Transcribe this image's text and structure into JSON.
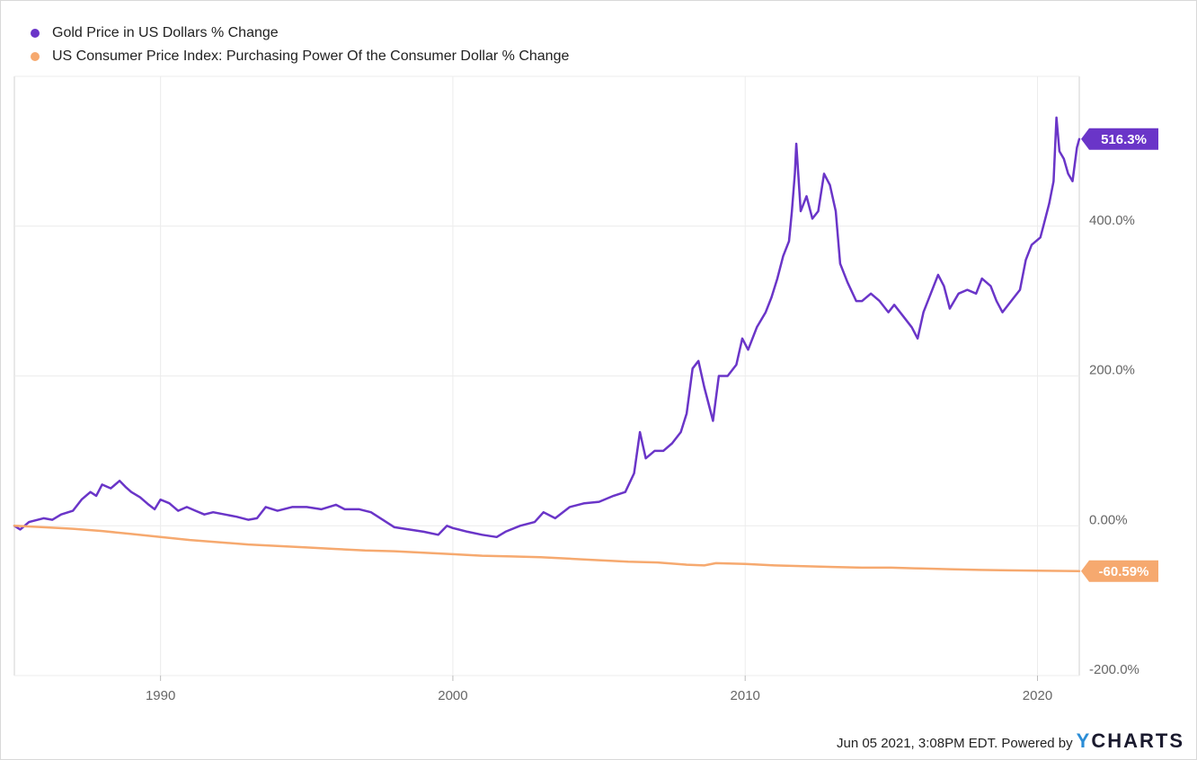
{
  "chart_data": {
    "type": "line",
    "x_range": [
      1985.0,
      2021.43
    ],
    "ylim": [
      -200,
      600
    ],
    "y_ticks": [
      {
        "value": 400,
        "label": "400.0%"
      },
      {
        "value": 200,
        "label": "200.0%"
      },
      {
        "value": 0,
        "label": "0.00%"
      },
      {
        "value": -200,
        "label": "-200.0%"
      }
    ],
    "x_ticks": [
      {
        "value": 1990,
        "label": "1990"
      },
      {
        "value": 2000,
        "label": "2000"
      },
      {
        "value": 2010,
        "label": "2010"
      },
      {
        "value": 2020,
        "label": "2020"
      }
    ],
    "grid": true,
    "legend_position": "top-left",
    "series": [
      {
        "name": "Gold Price in US Dollars % Change",
        "color": "#6a35c8",
        "end_label": "516.3%",
        "points": [
          [
            1985.0,
            0
          ],
          [
            1985.2,
            -5
          ],
          [
            1985.5,
            5
          ],
          [
            1986.0,
            10
          ],
          [
            1986.3,
            8
          ],
          [
            1986.6,
            15
          ],
          [
            1987.0,
            20
          ],
          [
            1987.3,
            35
          ],
          [
            1987.6,
            45
          ],
          [
            1987.8,
            40
          ],
          [
            1988.0,
            55
          ],
          [
            1988.3,
            50
          ],
          [
            1988.6,
            60
          ],
          [
            1988.8,
            52
          ],
          [
            1989.0,
            45
          ],
          [
            1989.3,
            38
          ],
          [
            1989.6,
            28
          ],
          [
            1989.8,
            22
          ],
          [
            1990.0,
            35
          ],
          [
            1990.3,
            30
          ],
          [
            1990.6,
            20
          ],
          [
            1990.9,
            25
          ],
          [
            1991.2,
            20
          ],
          [
            1991.5,
            15
          ],
          [
            1991.8,
            18
          ],
          [
            1992.2,
            15
          ],
          [
            1992.6,
            12
          ],
          [
            1993.0,
            8
          ],
          [
            1993.3,
            10
          ],
          [
            1993.6,
            25
          ],
          [
            1994.0,
            20
          ],
          [
            1994.5,
            25
          ],
          [
            1995.0,
            25
          ],
          [
            1995.5,
            22
          ],
          [
            1996.0,
            28
          ],
          [
            1996.3,
            22
          ],
          [
            1996.8,
            22
          ],
          [
            1997.2,
            18
          ],
          [
            1997.6,
            8
          ],
          [
            1998.0,
            -2
          ],
          [
            1998.5,
            -5
          ],
          [
            1999.0,
            -8
          ],
          [
            1999.5,
            -12
          ],
          [
            1999.8,
            0
          ],
          [
            2000.0,
            -3
          ],
          [
            2000.5,
            -8
          ],
          [
            2001.0,
            -12
          ],
          [
            2001.5,
            -15
          ],
          [
            2001.8,
            -8
          ],
          [
            2002.3,
            0
          ],
          [
            2002.8,
            5
          ],
          [
            2003.1,
            18
          ],
          [
            2003.5,
            10
          ],
          [
            2004.0,
            25
          ],
          [
            2004.5,
            30
          ],
          [
            2005.0,
            32
          ],
          [
            2005.5,
            40
          ],
          [
            2005.9,
            45
          ],
          [
            2006.2,
            70
          ],
          [
            2006.4,
            125
          ],
          [
            2006.6,
            90
          ],
          [
            2006.9,
            100
          ],
          [
            2007.2,
            100
          ],
          [
            2007.5,
            110
          ],
          [
            2007.8,
            125
          ],
          [
            2008.0,
            150
          ],
          [
            2008.2,
            210
          ],
          [
            2008.4,
            220
          ],
          [
            2008.6,
            185
          ],
          [
            2008.8,
            155
          ],
          [
            2008.9,
            140
          ],
          [
            2009.1,
            200
          ],
          [
            2009.4,
            200
          ],
          [
            2009.7,
            215
          ],
          [
            2009.9,
            250
          ],
          [
            2010.1,
            235
          ],
          [
            2010.4,
            265
          ],
          [
            2010.7,
            285
          ],
          [
            2010.9,
            305
          ],
          [
            2011.1,
            330
          ],
          [
            2011.3,
            360
          ],
          [
            2011.5,
            380
          ],
          [
            2011.6,
            420
          ],
          [
            2011.7,
            470
          ],
          [
            2011.75,
            510
          ],
          [
            2011.9,
            420
          ],
          [
            2012.1,
            440
          ],
          [
            2012.3,
            410
          ],
          [
            2012.5,
            420
          ],
          [
            2012.7,
            470
          ],
          [
            2012.9,
            455
          ],
          [
            2013.1,
            420
          ],
          [
            2013.25,
            350
          ],
          [
            2013.5,
            325
          ],
          [
            2013.8,
            300
          ],
          [
            2014.0,
            300
          ],
          [
            2014.3,
            310
          ],
          [
            2014.6,
            300
          ],
          [
            2014.9,
            285
          ],
          [
            2015.1,
            295
          ],
          [
            2015.4,
            280
          ],
          [
            2015.7,
            265
          ],
          [
            2015.9,
            250
          ],
          [
            2016.1,
            285
          ],
          [
            2016.4,
            315
          ],
          [
            2016.6,
            335
          ],
          [
            2016.8,
            320
          ],
          [
            2017.0,
            290
          ],
          [
            2017.3,
            310
          ],
          [
            2017.6,
            315
          ],
          [
            2017.9,
            310
          ],
          [
            2018.1,
            330
          ],
          [
            2018.4,
            320
          ],
          [
            2018.6,
            300
          ],
          [
            2018.8,
            285
          ],
          [
            2019.1,
            300
          ],
          [
            2019.4,
            315
          ],
          [
            2019.6,
            355
          ],
          [
            2019.8,
            375
          ],
          [
            2020.1,
            385
          ],
          [
            2020.2,
            400
          ],
          [
            2020.4,
            430
          ],
          [
            2020.55,
            460
          ],
          [
            2020.65,
            545
          ],
          [
            2020.75,
            500
          ],
          [
            2020.9,
            490
          ],
          [
            2021.05,
            470
          ],
          [
            2021.2,
            460
          ],
          [
            2021.35,
            505
          ],
          [
            2021.43,
            516.3
          ]
        ]
      },
      {
        "name": "US Consumer Price Index: Purchasing Power Of the Consumer Dollar % Change",
        "color": "#f6a96f",
        "end_label": "-60.59%",
        "points": [
          [
            1985.0,
            0
          ],
          [
            1986.0,
            -2
          ],
          [
            1987.0,
            -4
          ],
          [
            1988.0,
            -7
          ],
          [
            1989.0,
            -11
          ],
          [
            1990.0,
            -15
          ],
          [
            1991.0,
            -19
          ],
          [
            1992.0,
            -22
          ],
          [
            1993.0,
            -25
          ],
          [
            1994.0,
            -27
          ],
          [
            1995.0,
            -29
          ],
          [
            1996.0,
            -31
          ],
          [
            1997.0,
            -33
          ],
          [
            1998.0,
            -34
          ],
          [
            1999.0,
            -36
          ],
          [
            2000.0,
            -38
          ],
          [
            2001.0,
            -40
          ],
          [
            2002.0,
            -41
          ],
          [
            2003.0,
            -42
          ],
          [
            2004.0,
            -44
          ],
          [
            2005.0,
            -46
          ],
          [
            2006.0,
            -48
          ],
          [
            2007.0,
            -49
          ],
          [
            2008.0,
            -52
          ],
          [
            2008.6,
            -53
          ],
          [
            2009.0,
            -50
          ],
          [
            2010.0,
            -51
          ],
          [
            2011.0,
            -53
          ],
          [
            2012.0,
            -54
          ],
          [
            2013.0,
            -55
          ],
          [
            2014.0,
            -56
          ],
          [
            2015.0,
            -56
          ],
          [
            2016.0,
            -57
          ],
          [
            2017.0,
            -58
          ],
          [
            2018.0,
            -59
          ],
          [
            2019.0,
            -59.5
          ],
          [
            2020.0,
            -60
          ],
          [
            2021.43,
            -60.59
          ]
        ]
      }
    ]
  },
  "footer": {
    "timestamp": "Jun 05 2021, 3:08PM EDT.  Powered by",
    "brand_y": "Y",
    "brand_rest": "CHARTS"
  }
}
